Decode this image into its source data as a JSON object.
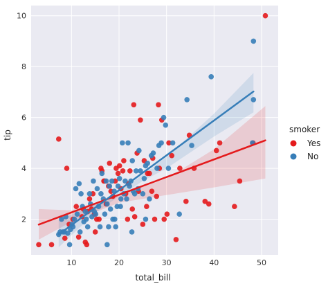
{
  "chart_data": {
    "type": "scatter",
    "title": "",
    "xlabel": "total_bill",
    "ylabel": "tip",
    "xlim": [
      1.5,
      53.5
    ],
    "ylim": [
      0.6,
      10.4
    ],
    "xticks": [
      10,
      20,
      30,
      40,
      50
    ],
    "yticks": [
      2,
      4,
      6,
      8,
      10
    ],
    "grid": true,
    "legend": {
      "title": "smoker",
      "placement": "right"
    },
    "series": [
      {
        "name": "Yes",
        "color": "#e41a1c",
        "points": [
          [
            3.1,
            1.0
          ],
          [
            5.8,
            1.0
          ],
          [
            7.3,
            5.15
          ],
          [
            8.6,
            1.25
          ],
          [
            9.5,
            1.8
          ],
          [
            9.0,
            4.0
          ],
          [
            10.3,
            2.0
          ],
          [
            11.0,
            2.5
          ],
          [
            11.5,
            1.3
          ],
          [
            12.2,
            2.1
          ],
          [
            12.5,
            2.4
          ],
          [
            12.9,
            1.1
          ],
          [
            13.2,
            1.0
          ],
          [
            13.4,
            2.3
          ],
          [
            13.8,
            2.8
          ],
          [
            14.2,
            2.4
          ],
          [
            14.5,
            3.0
          ],
          [
            14.8,
            2.2
          ],
          [
            15.0,
            1.5
          ],
          [
            15.3,
            2.0
          ],
          [
            15.8,
            2.0
          ],
          [
            16.2,
            4.0
          ],
          [
            16.4,
            3.9
          ],
          [
            16.8,
            3.5
          ],
          [
            17.0,
            3.5
          ],
          [
            17.3,
            2.6
          ],
          [
            17.8,
            3.3
          ],
          [
            18.0,
            4.2
          ],
          [
            18.3,
            3.1
          ],
          [
            18.7,
            2.9
          ],
          [
            19.2,
            3.5
          ],
          [
            19.4,
            4.0
          ],
          [
            19.8,
            3.8
          ],
          [
            20.1,
            4.1
          ],
          [
            20.4,
            3.2
          ],
          [
            20.8,
            3.9
          ],
          [
            21.0,
            4.3
          ],
          [
            21.4,
            3.0
          ],
          [
            21.8,
            2.0
          ],
          [
            22.0,
            3.4
          ],
          [
            22.3,
            3.9
          ],
          [
            22.8,
            2.4
          ],
          [
            23.1,
            6.5
          ],
          [
            23.3,
            2.1
          ],
          [
            23.8,
            4.6
          ],
          [
            24.1,
            3.1
          ],
          [
            24.5,
            5.9
          ],
          [
            25.0,
            1.8
          ],
          [
            25.3,
            4.3
          ],
          [
            25.8,
            2.5
          ],
          [
            26.0,
            3.8
          ],
          [
            26.4,
            3.8
          ],
          [
            26.9,
            3.1
          ],
          [
            27.1,
            4.4
          ],
          [
            27.5,
            2.0
          ],
          [
            27.9,
            2.9
          ],
          [
            28.3,
            6.5
          ],
          [
            28.5,
            4.0
          ],
          [
            29.0,
            5.9
          ],
          [
            29.5,
            2.0
          ],
          [
            30.1,
            2.2
          ],
          [
            30.5,
            5.0
          ],
          [
            31.1,
            4.5
          ],
          [
            32.0,
            1.2
          ],
          [
            32.8,
            4.0
          ],
          [
            34.1,
            2.7
          ],
          [
            34.8,
            5.3
          ],
          [
            35.8,
            4.0
          ],
          [
            38.1,
            2.7
          ],
          [
            38.9,
            2.6
          ],
          [
            40.5,
            4.7
          ],
          [
            41.2,
            5.0
          ],
          [
            44.3,
            2.5
          ],
          [
            45.4,
            3.5
          ],
          [
            48.2,
            5.0
          ],
          [
            50.8,
            10.0
          ]
        ],
        "fit": {
          "x": [
            3.1,
            50.8
          ],
          "y": [
            1.79,
            5.1
          ]
        },
        "ci": {
          "x": [
            3.1,
            10,
            20,
            30,
            40,
            50.8
          ],
          "lower": [
            1.2,
            1.9,
            2.65,
            2.95,
            3.25,
            3.6
          ],
          "upper": [
            2.4,
            2.35,
            2.95,
            3.6,
            4.75,
            6.45
          ]
        }
      },
      {
        "name": "No",
        "color": "#377eb8",
        "points": [
          [
            7.3,
            1.4
          ],
          [
            7.6,
            1.5
          ],
          [
            7.9,
            2.0
          ],
          [
            8.2,
            1.5
          ],
          [
            8.5,
            1.5
          ],
          [
            8.8,
            2.1
          ],
          [
            9.2,
            1.45
          ],
          [
            9.6,
            1.0
          ],
          [
            9.8,
            1.6
          ],
          [
            10.1,
            1.8
          ],
          [
            10.3,
            1.7
          ],
          [
            10.6,
            2.0
          ],
          [
            10.9,
            3.2
          ],
          [
            11.2,
            2.2
          ],
          [
            11.6,
            3.4
          ],
          [
            11.8,
            1.5
          ],
          [
            12.0,
            3.0
          ],
          [
            12.3,
            2.5
          ],
          [
            12.6,
            1.9
          ],
          [
            12.9,
            2.3
          ],
          [
            13.1,
            2.0
          ],
          [
            13.4,
            1.7
          ],
          [
            13.8,
            3.0
          ],
          [
            14.0,
            2.6
          ],
          [
            14.3,
            2.1
          ],
          [
            14.6,
            3.5
          ],
          [
            14.8,
            2.3
          ],
          [
            15.1,
            2.2
          ],
          [
            15.4,
            3.2
          ],
          [
            15.7,
            2.5
          ],
          [
            16.0,
            1.7
          ],
          [
            16.2,
            3.0
          ],
          [
            16.4,
            3.8
          ],
          [
            16.7,
            2.8
          ],
          [
            17.0,
            2.2
          ],
          [
            17.3,
            3.5
          ],
          [
            17.5,
            2.6
          ],
          [
            17.8,
            1.7
          ],
          [
            18.0,
            3.3
          ],
          [
            18.2,
            2.4
          ],
          [
            18.5,
            3.5
          ],
          [
            18.7,
            2.0
          ],
          [
            19.0,
            3.1
          ],
          [
            19.3,
            1.7
          ],
          [
            19.6,
            2.5
          ],
          [
            19.8,
            3.3
          ],
          [
            20.1,
            3.6
          ],
          [
            20.4,
            2.8
          ],
          [
            20.7,
            5.0
          ],
          [
            21.0,
            3.0
          ],
          [
            21.3,
            3.5
          ],
          [
            21.6,
            2.8
          ],
          [
            21.9,
            5.0
          ],
          [
            22.2,
            3.3
          ],
          [
            22.5,
            3.5
          ],
          [
            22.8,
            4.3
          ],
          [
            23.0,
            3.1
          ],
          [
            23.3,
            3.0
          ],
          [
            23.6,
            3.9
          ],
          [
            24.0,
            3.2
          ],
          [
            24.2,
            4.7
          ],
          [
            24.5,
            3.9
          ],
          [
            25.0,
            3.0
          ],
          [
            25.3,
            3.6
          ],
          [
            25.6,
            4.1
          ],
          [
            26.0,
            4.2
          ],
          [
            26.4,
            2.8
          ],
          [
            26.8,
            4.5
          ],
          [
            27.2,
            4.6
          ],
          [
            28.0,
            4.0
          ],
          [
            28.4,
            4.9
          ],
          [
            28.9,
            5.0
          ],
          [
            29.4,
            6.0
          ],
          [
            29.8,
            5.7
          ],
          [
            30.4,
            4.0
          ],
          [
            31.3,
            5.0
          ],
          [
            32.7,
            2.2
          ],
          [
            34.3,
            6.7
          ],
          [
            35.3,
            4.9
          ],
          [
            39.4,
            7.6
          ],
          [
            48.3,
            9.0
          ],
          [
            48.3,
            6.7
          ],
          [
            48.1,
            5.0
          ],
          [
            22.7,
            1.5
          ],
          [
            25.6,
            2.0
          ],
          [
            17.5,
            1.0
          ],
          [
            19.1,
            2.0
          ],
          [
            20.3,
            2.5
          ]
        ],
        "fit": {
          "x": [
            7.3,
            48.3
          ],
          "y": [
            1.4,
            7.02
          ]
        },
        "ci": {
          "x": [
            7.3,
            15,
            20,
            25,
            30,
            40,
            48.3
          ],
          "lower": [
            0.9,
            2.25,
            2.9,
            3.5,
            4.0,
            5.25,
            6.2
          ],
          "upper": [
            1.95,
            2.6,
            3.1,
            3.75,
            4.45,
            6.15,
            7.75
          ]
        }
      }
    ]
  }
}
